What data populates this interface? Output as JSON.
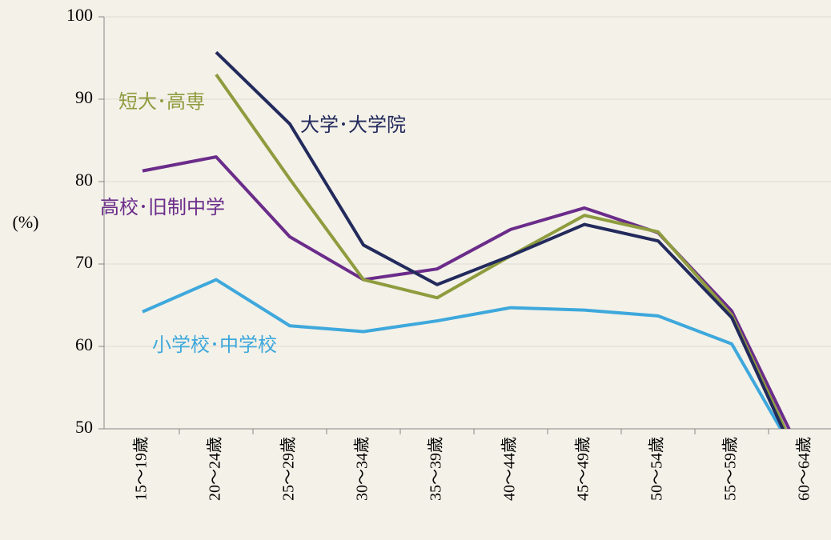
{
  "chart_data": {
    "type": "line",
    "y_label": "(%)",
    "categories": [
      "15〜19歳",
      "20〜24歳",
      "25〜29歳",
      "30〜34歳",
      "35〜39歳",
      "40〜44歳",
      "45〜49歳",
      "50〜54歳",
      "55〜59歳",
      "60〜64歳"
    ],
    "series": [
      {
        "name": "小学校･中学校",
        "color": "#3ea8dc",
        "values": [
          64.2,
          68.1,
          62.5,
          61.8,
          63.1,
          64.7,
          64.4,
          63.7,
          60.3,
          44.8
        ]
      },
      {
        "name": "高校･旧制中学",
        "color": "#6b2c8a",
        "values": [
          81.3,
          83.0,
          73.3,
          68.1,
          69.4,
          74.2,
          76.8,
          73.8,
          64.3,
          45.9
        ]
      },
      {
        "name": "短大･高専",
        "color": "#8e9c3e",
        "values": [
          null,
          93.0,
          80.3,
          68.1,
          65.9,
          71.0,
          75.9,
          73.9,
          63.8,
          44.7
        ]
      },
      {
        "name": "大学･大学院",
        "color": "#232a5c",
        "values": [
          null,
          95.7,
          87.0,
          72.3,
          67.5,
          71.0,
          74.8,
          72.8,
          63.5,
          44.0
        ]
      }
    ],
    "ylim": [
      50,
      100
    ],
    "yticks": [
      50,
      60,
      70,
      80,
      90,
      100
    ],
    "grid": true
  }
}
